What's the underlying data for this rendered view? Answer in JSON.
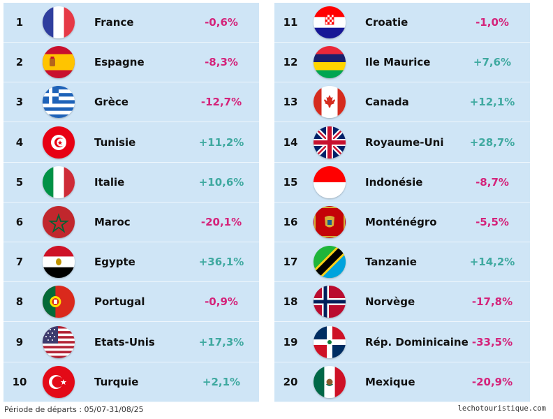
{
  "colors": {
    "negative": "#d4237a",
    "positive": "#3fa9a0",
    "panel": "#cfe5f6"
  },
  "left_rows": [
    {
      "rank": "1",
      "country": "France",
      "change": "-0,6%",
      "flag": "france-flag",
      "trend": "negative"
    },
    {
      "rank": "2",
      "country": "Espagne",
      "change": "-8,3%",
      "flag": "spain-flag",
      "trend": "negative"
    },
    {
      "rank": "3",
      "country": "Grèce",
      "change": "-12,7%",
      "flag": "greece-flag",
      "trend": "negative"
    },
    {
      "rank": "4",
      "country": "Tunisie",
      "change": "+11,2%",
      "flag": "tunisia-flag",
      "trend": "positive"
    },
    {
      "rank": "5",
      "country": "Italie",
      "change": "+10,6%",
      "flag": "italy-flag",
      "trend": "positive"
    },
    {
      "rank": "6",
      "country": "Maroc",
      "change": "-20,1%",
      "flag": "morocco-flag",
      "trend": "negative"
    },
    {
      "rank": "7",
      "country": "Egypte",
      "change": "+36,1%",
      "flag": "egypt-flag",
      "trend": "positive"
    },
    {
      "rank": "8",
      "country": "Portugal",
      "change": "-0,9%",
      "flag": "portugal-flag",
      "trend": "negative"
    },
    {
      "rank": "9",
      "country": "Etats-Unis",
      "change": "+17,3%",
      "flag": "usa-flag",
      "trend": "positive"
    },
    {
      "rank": "10",
      "country": "Turquie",
      "change": "+2,1%",
      "flag": "turkey-flag",
      "trend": "positive"
    }
  ],
  "right_rows": [
    {
      "rank": "11",
      "country": "Croatie",
      "change": "-1,0%",
      "flag": "croatia-flag",
      "trend": "negative"
    },
    {
      "rank": "12",
      "country": "Ile Maurice",
      "change": "+7,6%",
      "flag": "mauritius-flag",
      "trend": "positive"
    },
    {
      "rank": "13",
      "country": "Canada",
      "change": "+12,1%",
      "flag": "canada-flag",
      "trend": "positive"
    },
    {
      "rank": "14",
      "country": "Royaume-Uni",
      "change": "+28,7%",
      "flag": "uk-flag",
      "trend": "positive"
    },
    {
      "rank": "15",
      "country": "Indonésie",
      "change": "-8,7%",
      "flag": "indonesia-flag",
      "trend": "negative"
    },
    {
      "rank": "16",
      "country": "Monténégro",
      "change": "-5,5%",
      "flag": "montenegro-flag",
      "trend": "negative"
    },
    {
      "rank": "17",
      "country": "Tanzanie",
      "change": "+14,2%",
      "flag": "tanzania-flag",
      "trend": "positive"
    },
    {
      "rank": "18",
      "country": "Norvège",
      "change": "-17,8%",
      "flag": "norway-flag",
      "trend": "negative"
    },
    {
      "rank": "19",
      "country": "Rép. Dominicaine",
      "change": "-33,5%",
      "flag": "dominican-republic-flag",
      "trend": "negative"
    },
    {
      "rank": "20",
      "country": "Mexique",
      "change": "-20,9%",
      "flag": "mexico-flag",
      "trend": "negative"
    }
  ],
  "footer": {
    "period": "Période de départs : 05/07-31/08/25",
    "source": "lechotouristique.com"
  }
}
